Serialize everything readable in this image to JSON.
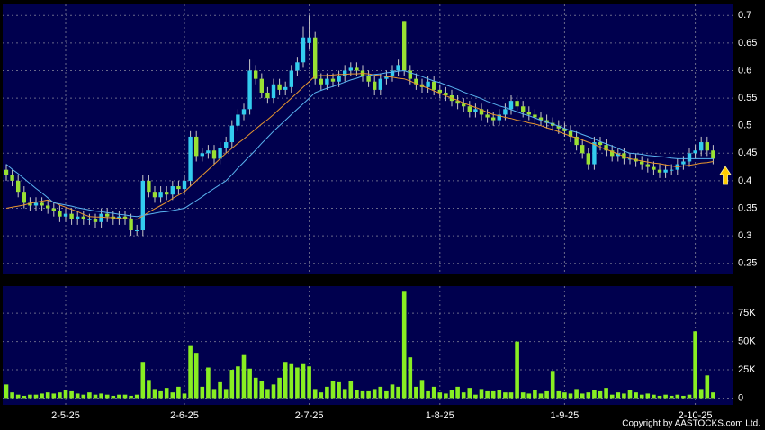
{
  "chart_data": [
    {
      "type": "candlestick",
      "open": [
        0.42,
        0.41,
        0.4,
        0.38,
        0.36,
        0.355,
        0.36,
        0.355,
        0.35,
        0.345,
        0.335,
        0.34,
        0.33,
        0.335,
        0.33,
        0.33,
        0.325,
        0.34,
        0.335,
        0.33,
        0.335,
        0.33,
        0.31,
        0.31,
        0.4,
        0.38,
        0.37,
        0.38,
        0.375,
        0.39,
        0.385,
        0.4,
        0.48,
        0.445,
        0.45,
        0.455,
        0.44,
        0.46,
        0.47,
        0.5,
        0.52,
        0.53,
        0.6,
        0.585,
        0.56,
        0.55,
        0.575,
        0.565,
        0.57,
        0.6,
        0.615,
        0.65,
        0.66,
        0.585,
        0.575,
        0.585,
        0.58,
        0.59,
        0.6,
        0.605,
        0.6,
        0.59,
        0.58,
        0.565,
        0.585,
        0.59,
        0.6,
        0.69,
        0.6,
        0.585,
        0.575,
        0.57,
        0.58,
        0.565,
        0.56,
        0.555,
        0.545,
        0.54,
        0.535,
        0.525,
        0.53,
        0.52,
        0.515,
        0.51,
        0.52,
        0.53,
        0.545,
        0.535,
        0.525,
        0.52,
        0.515,
        0.51,
        0.505,
        0.5,
        0.495,
        0.49,
        0.48,
        0.465,
        0.45,
        0.43,
        0.47,
        0.465,
        0.455,
        0.445,
        0.45,
        0.44,
        0.44,
        0.435,
        0.43,
        0.425,
        0.42,
        0.415,
        0.42,
        0.42,
        0.43,
        0.435,
        0.45,
        0.455,
        0.47,
        0.455
      ],
      "high": [
        0.43,
        0.42,
        0.41,
        0.39,
        0.37,
        0.37,
        0.37,
        0.365,
        0.36,
        0.355,
        0.35,
        0.35,
        0.345,
        0.345,
        0.34,
        0.34,
        0.35,
        0.35,
        0.345,
        0.345,
        0.345,
        0.34,
        0.32,
        0.41,
        0.41,
        0.39,
        0.39,
        0.39,
        0.4,
        0.4,
        0.41,
        0.49,
        0.49,
        0.46,
        0.465,
        0.465,
        0.47,
        0.48,
        0.51,
        0.53,
        0.54,
        0.62,
        0.61,
        0.595,
        0.57,
        0.585,
        0.585,
        0.58,
        0.61,
        0.625,
        0.68,
        0.7,
        0.67,
        0.595,
        0.595,
        0.595,
        0.6,
        0.61,
        0.615,
        0.615,
        0.61,
        0.6,
        0.59,
        0.595,
        0.6,
        0.61,
        0.62,
        0.69,
        0.61,
        0.595,
        0.585,
        0.59,
        0.59,
        0.575,
        0.57,
        0.565,
        0.555,
        0.55,
        0.545,
        0.54,
        0.54,
        0.53,
        0.525,
        0.53,
        0.54,
        0.555,
        0.555,
        0.545,
        0.535,
        0.53,
        0.525,
        0.52,
        0.515,
        0.51,
        0.505,
        0.5,
        0.49,
        0.475,
        0.46,
        0.48,
        0.48,
        0.475,
        0.465,
        0.46,
        0.46,
        0.45,
        0.45,
        0.445,
        0.44,
        0.435,
        0.43,
        0.43,
        0.43,
        0.44,
        0.445,
        0.46,
        0.465,
        0.48,
        0.48,
        0.465
      ],
      "low": [
        0.4,
        0.39,
        0.37,
        0.35,
        0.345,
        0.345,
        0.345,
        0.34,
        0.335,
        0.325,
        0.325,
        0.32,
        0.32,
        0.32,
        0.32,
        0.315,
        0.315,
        0.325,
        0.32,
        0.32,
        0.32,
        0.3,
        0.3,
        0.3,
        0.37,
        0.36,
        0.36,
        0.365,
        0.365,
        0.375,
        0.375,
        0.39,
        0.435,
        0.435,
        0.44,
        0.43,
        0.43,
        0.45,
        0.46,
        0.49,
        0.51,
        0.52,
        0.575,
        0.55,
        0.54,
        0.54,
        0.555,
        0.555,
        0.56,
        0.59,
        0.605,
        0.64,
        0.575,
        0.565,
        0.565,
        0.57,
        0.57,
        0.58,
        0.59,
        0.59,
        0.58,
        0.57,
        0.555,
        0.555,
        0.575,
        0.58,
        0.59,
        0.59,
        0.575,
        0.565,
        0.56,
        0.56,
        0.555,
        0.55,
        0.545,
        0.535,
        0.53,
        0.525,
        0.515,
        0.515,
        0.51,
        0.505,
        0.5,
        0.5,
        0.51,
        0.52,
        0.525,
        0.515,
        0.51,
        0.505,
        0.5,
        0.495,
        0.49,
        0.485,
        0.48,
        0.47,
        0.455,
        0.44,
        0.42,
        0.42,
        0.455,
        0.445,
        0.435,
        0.435,
        0.43,
        0.43,
        0.425,
        0.42,
        0.415,
        0.41,
        0.405,
        0.405,
        0.41,
        0.41,
        0.42,
        0.425,
        0.44,
        0.445,
        0.445,
        0.43
      ],
      "close": [
        0.41,
        0.4,
        0.38,
        0.36,
        0.355,
        0.36,
        0.355,
        0.35,
        0.345,
        0.335,
        0.34,
        0.33,
        0.335,
        0.33,
        0.33,
        0.325,
        0.34,
        0.335,
        0.33,
        0.335,
        0.33,
        0.31,
        0.31,
        0.4,
        0.38,
        0.37,
        0.38,
        0.375,
        0.39,
        0.385,
        0.4,
        0.48,
        0.445,
        0.45,
        0.455,
        0.44,
        0.46,
        0.47,
        0.5,
        0.52,
        0.53,
        0.6,
        0.585,
        0.56,
        0.55,
        0.575,
        0.565,
        0.57,
        0.6,
        0.615,
        0.66,
        0.66,
        0.585,
        0.575,
        0.585,
        0.58,
        0.59,
        0.6,
        0.605,
        0.6,
        0.59,
        0.58,
        0.565,
        0.585,
        0.59,
        0.6,
        0.61,
        0.6,
        0.585,
        0.575,
        0.57,
        0.58,
        0.565,
        0.56,
        0.555,
        0.545,
        0.54,
        0.535,
        0.525,
        0.53,
        0.52,
        0.515,
        0.51,
        0.52,
        0.53,
        0.545,
        0.535,
        0.525,
        0.52,
        0.515,
        0.51,
        0.505,
        0.5,
        0.495,
        0.49,
        0.48,
        0.465,
        0.45,
        0.43,
        0.47,
        0.465,
        0.455,
        0.445,
        0.45,
        0.44,
        0.44,
        0.435,
        0.43,
        0.425,
        0.42,
        0.415,
        0.42,
        0.42,
        0.43,
        0.435,
        0.45,
        0.455,
        0.47,
        0.455,
        0.44
      ],
      "up_color": "#33ccee",
      "down_color": "#99e033",
      "wick_color": "#c8c8c8",
      "series": [
        {
          "color": "#e8962e",
          "values": [
            0.35,
            0.352,
            0.354,
            0.356,
            0.359,
            0.361,
            0.363,
            0.365,
            0.361,
            0.356,
            0.352,
            0.348,
            0.344,
            0.339,
            0.335,
            0.334,
            0.334,
            0.333,
            0.333,
            0.332,
            0.331,
            0.331,
            0.33,
            0.336,
            0.343,
            0.349,
            0.355,
            0.361,
            0.368,
            0.374,
            0.38,
            0.39,
            0.4,
            0.41,
            0.42,
            0.43,
            0.44,
            0.45,
            0.459,
            0.468,
            0.476,
            0.485,
            0.494,
            0.503,
            0.511,
            0.52,
            0.53,
            0.54,
            0.55,
            0.56,
            0.57,
            0.58,
            0.59,
            0.591,
            0.591,
            0.592,
            0.593,
            0.593,
            0.594,
            0.594,
            0.595,
            0.594,
            0.592,
            0.591,
            0.589,
            0.588,
            0.586,
            0.585,
            0.581,
            0.576,
            0.572,
            0.568,
            0.563,
            0.559,
            0.554,
            0.55,
            0.546,
            0.541,
            0.537,
            0.533,
            0.529,
            0.524,
            0.52,
            0.518,
            0.515,
            0.513,
            0.51,
            0.508,
            0.505,
            0.503,
            0.5,
            0.496,
            0.493,
            0.489,
            0.485,
            0.481,
            0.478,
            0.474,
            0.47,
            0.466,
            0.461,
            0.457,
            0.453,
            0.449,
            0.444,
            0.44,
            0.438,
            0.436,
            0.434,
            0.432,
            0.431,
            0.429,
            0.427,
            0.425,
            0.427,
            0.428,
            0.43,
            0.432,
            0.433,
            0.435
          ]
        },
        {
          "color": "#5ab4f0",
          "values": [
            0.43,
            0.421,
            0.413,
            0.404,
            0.395,
            0.386,
            0.378,
            0.369,
            0.36,
            0.358,
            0.356,
            0.354,
            0.351,
            0.349,
            0.347,
            0.345,
            0.344,
            0.342,
            0.341,
            0.339,
            0.338,
            0.336,
            0.335,
            0.337,
            0.339,
            0.341,
            0.343,
            0.344,
            0.346,
            0.348,
            0.35,
            0.357,
            0.364,
            0.371,
            0.379,
            0.386,
            0.393,
            0.4,
            0.411,
            0.423,
            0.434,
            0.445,
            0.456,
            0.468,
            0.479,
            0.49,
            0.5,
            0.51,
            0.52,
            0.53,
            0.54,
            0.55,
            0.56,
            0.564,
            0.568,
            0.571,
            0.575,
            0.579,
            0.583,
            0.586,
            0.59,
            0.591,
            0.593,
            0.594,
            0.596,
            0.597,
            0.599,
            0.6,
            0.596,
            0.593,
            0.589,
            0.585,
            0.581,
            0.578,
            0.574,
            0.57,
            0.566,
            0.561,
            0.557,
            0.553,
            0.549,
            0.544,
            0.54,
            0.536,
            0.533,
            0.529,
            0.525,
            0.521,
            0.518,
            0.514,
            0.51,
            0.506,
            0.503,
            0.499,
            0.495,
            0.491,
            0.488,
            0.484,
            0.48,
            0.476,
            0.471,
            0.467,
            0.463,
            0.459,
            0.454,
            0.45,
            0.449,
            0.448,
            0.446,
            0.445,
            0.444,
            0.443,
            0.441,
            0.44,
            0.44,
            0.44,
            0.44,
            0.44,
            0.44,
            0.44
          ]
        }
      ],
      "ylim": [
        0.23,
        0.72
      ],
      "yticks": [
        0.25,
        0.3,
        0.35,
        0.4,
        0.45,
        0.5,
        0.55,
        0.6,
        0.65,
        0.7
      ],
      "grid": true
    },
    {
      "type": "bar",
      "categories": [
        null,
        null,
        null,
        null,
        null,
        null,
        null,
        null,
        null,
        null,
        "2-5-25",
        null,
        null,
        null,
        null,
        null,
        null,
        null,
        null,
        null,
        null,
        null,
        null,
        null,
        null,
        null,
        null,
        null,
        null,
        null,
        "2-6-25",
        null,
        null,
        null,
        null,
        null,
        null,
        null,
        null,
        null,
        null,
        null,
        null,
        null,
        null,
        null,
        null,
        null,
        null,
        null,
        null,
        "2-7-25",
        null,
        null,
        null,
        null,
        null,
        null,
        null,
        null,
        null,
        null,
        null,
        null,
        null,
        null,
        null,
        null,
        null,
        null,
        null,
        null,
        null,
        "1-8-25",
        null,
        null,
        null,
        null,
        null,
        null,
        null,
        null,
        null,
        null,
        null,
        null,
        null,
        null,
        null,
        null,
        null,
        null,
        null,
        null,
        "1-9-25",
        null,
        null,
        null,
        null,
        null,
        null,
        null,
        null,
        null,
        null,
        null,
        null,
        null,
        null,
        null,
        null,
        null,
        null,
        null,
        null,
        null,
        "2-10-25",
        null,
        null,
        null
      ],
      "values": [
        12000,
        5000,
        3000,
        2000,
        3000,
        3000,
        4000,
        5000,
        4000,
        5000,
        7000,
        6000,
        4000,
        3000,
        5000,
        3000,
        4000,
        3000,
        2000,
        3000,
        3000,
        2000,
        3000,
        32000,
        16000,
        8000,
        6000,
        9000,
        5000,
        10000,
        4000,
        46000,
        40000,
        10000,
        27000,
        8000,
        14000,
        8000,
        25000,
        28000,
        38000,
        26000,
        18000,
        15000,
        8000,
        12000,
        18000,
        32000,
        30000,
        27000,
        30000,
        28000,
        8000,
        5000,
        10000,
        15000,
        14000,
        8000,
        15000,
        7000,
        6000,
        6000,
        8000,
        10000,
        6000,
        12000,
        10000,
        94000,
        36000,
        10000,
        16000,
        6000,
        10000,
        5000,
        4000,
        7000,
        10000,
        5000,
        9000,
        3000,
        8000,
        6000,
        6000,
        7000,
        5000,
        5000,
        50000,
        5000,
        4000,
        7000,
        4000,
        6000,
        24000,
        6000,
        5000,
        4000,
        8000,
        4000,
        5000,
        7000,
        6000,
        9000,
        3000,
        5000,
        4000,
        7000,
        5000,
        3000,
        4000,
        3000,
        2000,
        3000,
        2000,
        3000,
        2000,
        3000,
        59000,
        8000,
        20000,
        5000
      ],
      "color": "#88ee22",
      "ylim": [
        -6000,
        99000
      ],
      "yticks": [
        0,
        {
          "value": 25000,
          "label": "25K"
        },
        {
          "value": 50000,
          "label": "50K"
        },
        {
          "value": 75000,
          "label": "75K"
        }
      ],
      "grid": true
    }
  ],
  "footer": "Copyright by AASTOCKS.com Ltd."
}
